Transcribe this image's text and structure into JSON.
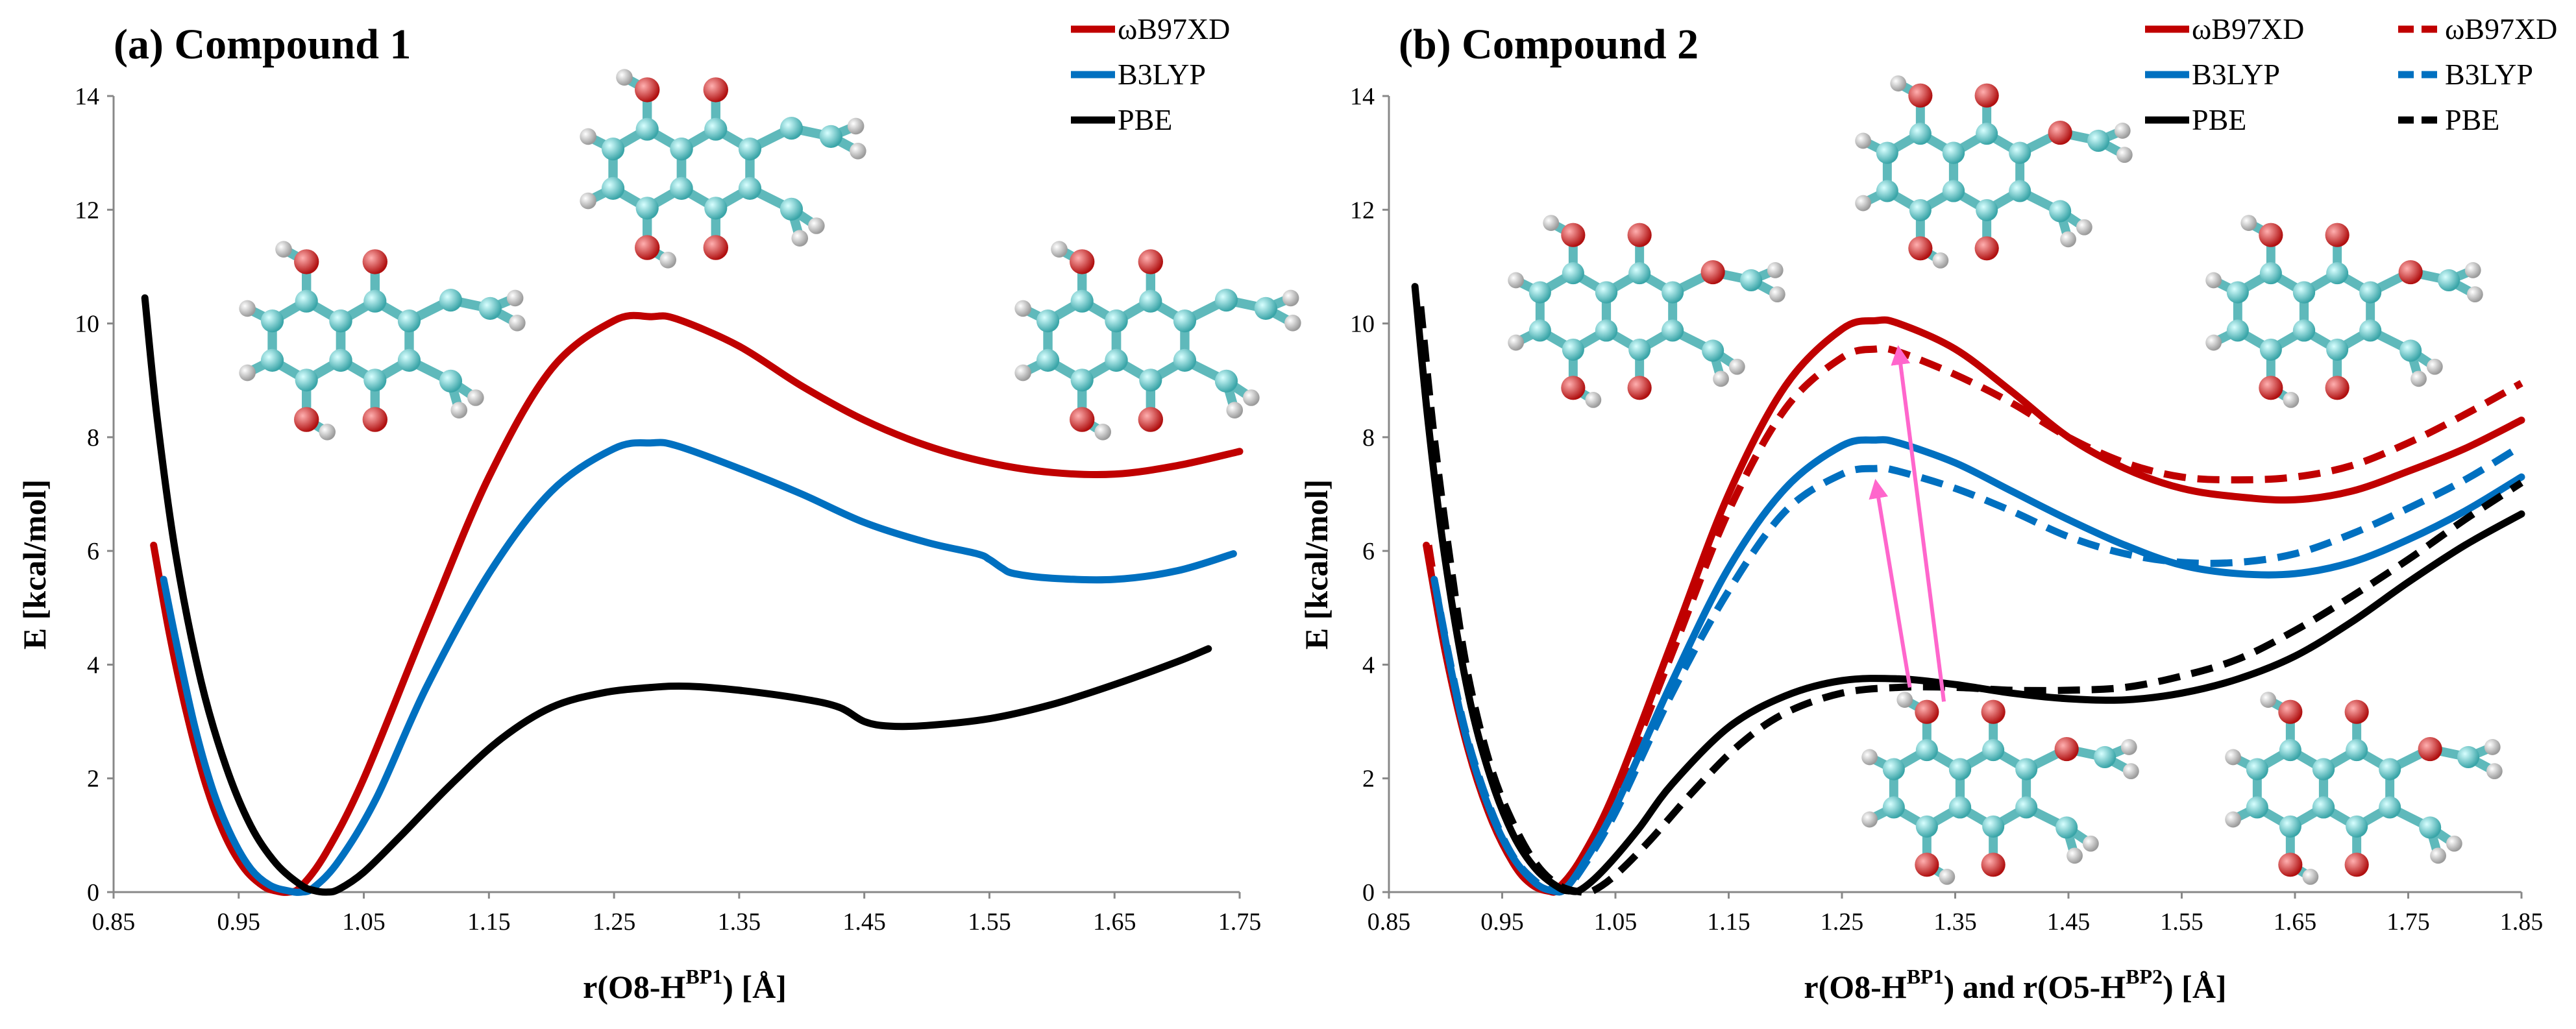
{
  "chart_data": [
    {
      "type": "line",
      "title": "(a) Compound 1",
      "xlabel_main": "r(O8-H",
      "xlabel_sup": "BP1",
      "xlabel_tail": ") [Å]",
      "ylabel": "E [kcal/mol]",
      "xlim": [
        0.85,
        1.75
      ],
      "ylim": [
        0,
        14
      ],
      "xticks": [
        "0.85",
        "0.95",
        "1.05",
        "1.15",
        "1.25",
        "1.35",
        "1.45",
        "1.55",
        "1.65",
        "1.75"
      ],
      "yticks": [
        "0",
        "2",
        "4",
        "6",
        "8",
        "10",
        "12",
        "14"
      ],
      "legend_position": "top-right",
      "series": [
        {
          "name": "ωB97XD",
          "color": "#C00000",
          "dash": "solid",
          "x": [
            0.882,
            0.895,
            0.91,
            0.925,
            0.94,
            0.955,
            0.97,
            0.98,
            0.99,
            1.0,
            1.02,
            1.05,
            1.1,
            1.15,
            1.2,
            1.25,
            1.28,
            1.3,
            1.35,
            1.4,
            1.45,
            1.5,
            1.55,
            1.6,
            1.65,
            1.7,
            1.75
          ],
          "y": [
            6.1,
            4.5,
            3.0,
            1.8,
            0.95,
            0.4,
            0.1,
            0.02,
            0.0,
            0.1,
            0.7,
            2.0,
            4.7,
            7.3,
            9.2,
            10.05,
            10.12,
            10.08,
            9.6,
            8.9,
            8.3,
            7.85,
            7.55,
            7.38,
            7.35,
            7.5,
            7.75
          ]
        },
        {
          "name": "B3LYP",
          "color": "#0070C0",
          "dash": "solid",
          "x": [
            0.89,
            0.9,
            0.915,
            0.93,
            0.945,
            0.96,
            0.975,
            0.99,
            1.0,
            1.01,
            1.03,
            1.06,
            1.1,
            1.15,
            1.2,
            1.25,
            1.28,
            1.3,
            1.35,
            1.4,
            1.45,
            1.5,
            1.54,
            1.55,
            1.56,
            1.57,
            1.6,
            1.65,
            1.7,
            1.745
          ],
          "y": [
            5.5,
            4.4,
            2.9,
            1.75,
            0.95,
            0.4,
            0.12,
            0.02,
            0.0,
            0.08,
            0.55,
            1.65,
            3.6,
            5.6,
            7.05,
            7.8,
            7.9,
            7.85,
            7.45,
            7.0,
            6.5,
            6.15,
            5.95,
            5.85,
            5.7,
            5.6,
            5.52,
            5.5,
            5.65,
            5.95
          ]
        },
        {
          "name": "PBE",
          "color": "#000000",
          "dash": "solid",
          "x": [
            0.875,
            0.885,
            0.9,
            0.92,
            0.94,
            0.96,
            0.98,
            1.0,
            1.01,
            1.02,
            1.03,
            1.05,
            1.08,
            1.12,
            1.16,
            1.2,
            1.24,
            1.28,
            1.31,
            1.35,
            1.4,
            1.43,
            1.45,
            1.47,
            1.5,
            1.55,
            1.6,
            1.65,
            1.7,
            1.725
          ],
          "y": [
            10.45,
            8.3,
            5.9,
            3.7,
            2.2,
            1.15,
            0.5,
            0.12,
            0.03,
            0.0,
            0.05,
            0.35,
            1.0,
            1.9,
            2.7,
            3.25,
            3.5,
            3.6,
            3.62,
            3.55,
            3.4,
            3.25,
            3.0,
            2.92,
            2.93,
            3.05,
            3.3,
            3.65,
            4.05,
            4.28
          ]
        }
      ]
    },
    {
      "type": "line",
      "title": "(b) Compound 2",
      "xlabel_main": "r(O8-H",
      "xlabel_sup": "BP1",
      "xlabel_mid": ") and r(O5-H",
      "xlabel_sup2": "BP2",
      "xlabel_tail": ") [Å]",
      "ylabel": "E [kcal/mol]",
      "xlim": [
        0.85,
        1.85
      ],
      "ylim": [
        0,
        14
      ],
      "xticks": [
        "0.85",
        "0.95",
        "1.05",
        "1.15",
        "1.25",
        "1.35",
        "1.45",
        "1.55",
        "1.65",
        "1.75",
        "1.85"
      ],
      "yticks": [
        "0",
        "2",
        "4",
        "6",
        "8",
        "10",
        "12",
        "14"
      ],
      "legend_position": "top-right",
      "series": [
        {
          "name": "ωB97XD",
          "color": "#C00000",
          "dash": "solid",
          "x": [
            0.883,
            0.9,
            0.92,
            0.94,
            0.96,
            0.975,
            0.99,
            1.0,
            1.02,
            1.05,
            1.1,
            1.15,
            1.2,
            1.25,
            1.28,
            1.3,
            1.35,
            1.4,
            1.45,
            1.5,
            1.55,
            1.6,
            1.65,
            1.7,
            1.75,
            1.8,
            1.85
          ],
          "y": [
            6.1,
            4.2,
            2.5,
            1.3,
            0.5,
            0.15,
            0.02,
            0.08,
            0.6,
            1.8,
            4.4,
            7.0,
            8.9,
            9.9,
            10.05,
            10.0,
            9.55,
            8.8,
            8.0,
            7.45,
            7.1,
            6.95,
            6.9,
            7.05,
            7.4,
            7.8,
            8.3
          ]
        },
        {
          "name": "ωB97XD",
          "color": "#C00000",
          "dash": "dashed",
          "x": [
            0.885,
            0.9,
            0.92,
            0.94,
            0.96,
            0.975,
            0.99,
            1.0,
            1.02,
            1.05,
            1.1,
            1.15,
            1.2,
            1.25,
            1.28,
            1.3,
            1.35,
            1.4,
            1.45,
            1.5,
            1.55,
            1.6,
            1.65,
            1.7,
            1.75,
            1.8,
            1.85
          ],
          "y": [
            6.1,
            4.3,
            2.55,
            1.35,
            0.55,
            0.18,
            0.03,
            0.05,
            0.55,
            1.7,
            4.2,
            6.7,
            8.5,
            9.4,
            9.55,
            9.5,
            9.1,
            8.6,
            8.0,
            7.55,
            7.3,
            7.25,
            7.3,
            7.5,
            7.9,
            8.4,
            8.95
          ]
        },
        {
          "name": "B3LYP",
          "color": "#0070C0",
          "dash": "solid",
          "x": [
            0.89,
            0.905,
            0.92,
            0.94,
            0.96,
            0.98,
            0.995,
            1.005,
            1.02,
            1.05,
            1.1,
            1.15,
            1.2,
            1.25,
            1.28,
            1.3,
            1.35,
            1.4,
            1.45,
            1.5,
            1.55,
            1.6,
            1.65,
            1.7,
            1.75,
            1.8,
            1.85
          ],
          "y": [
            5.5,
            3.9,
            2.6,
            1.4,
            0.6,
            0.15,
            0.02,
            0.05,
            0.45,
            1.5,
            3.7,
            5.7,
            7.1,
            7.85,
            7.95,
            7.9,
            7.55,
            7.05,
            6.55,
            6.1,
            5.75,
            5.6,
            5.6,
            5.8,
            6.2,
            6.7,
            7.3
          ]
        },
        {
          "name": "B3LYP",
          "color": "#0070C0",
          "dash": "dashed",
          "x": [
            0.89,
            0.905,
            0.92,
            0.94,
            0.96,
            0.98,
            0.995,
            1.005,
            1.02,
            1.05,
            1.1,
            1.15,
            1.2,
            1.25,
            1.28,
            1.3,
            1.35,
            1.4,
            1.45,
            1.5,
            1.55,
            1.6,
            1.65,
            1.7,
            1.75,
            1.8,
            1.85
          ],
          "y": [
            5.5,
            3.95,
            2.65,
            1.45,
            0.62,
            0.18,
            0.03,
            0.04,
            0.4,
            1.4,
            3.5,
            5.3,
            6.7,
            7.35,
            7.45,
            7.4,
            7.1,
            6.7,
            6.25,
            5.95,
            5.8,
            5.8,
            5.95,
            6.3,
            6.75,
            7.25,
            7.85
          ]
        },
        {
          "name": "PBE",
          "color": "#000000",
          "dash": "solid",
          "x": [
            0.873,
            0.885,
            0.9,
            0.92,
            0.94,
            0.96,
            0.98,
            1.0,
            1.01,
            1.02,
            1.04,
            1.07,
            1.1,
            1.15,
            1.2,
            1.25,
            1.3,
            1.35,
            1.4,
            1.45,
            1.5,
            1.55,
            1.6,
            1.65,
            1.7,
            1.75,
            1.8,
            1.85
          ],
          "y": [
            10.65,
            8.2,
            5.8,
            3.5,
            2.0,
            1.0,
            0.4,
            0.08,
            0.02,
            0.05,
            0.4,
            1.1,
            1.9,
            2.9,
            3.45,
            3.72,
            3.75,
            3.65,
            3.5,
            3.4,
            3.38,
            3.5,
            3.75,
            4.15,
            4.75,
            5.45,
            6.1,
            6.65
          ]
        },
        {
          "name": "PBE",
          "color": "#000000",
          "dash": "dashed",
          "x": [
            0.878,
            0.89,
            0.905,
            0.92,
            0.94,
            0.96,
            0.98,
            1.0,
            1.02,
            1.03,
            1.05,
            1.08,
            1.12,
            1.16,
            1.2,
            1.25,
            1.3,
            1.35,
            1.4,
            1.45,
            1.5,
            1.55,
            1.6,
            1.65,
            1.7,
            1.75,
            1.8,
            1.85
          ],
          "y": [
            10.3,
            8.0,
            5.7,
            3.8,
            2.2,
            1.2,
            0.5,
            0.12,
            0.0,
            0.02,
            0.3,
            0.9,
            1.8,
            2.6,
            3.15,
            3.5,
            3.6,
            3.6,
            3.55,
            3.55,
            3.6,
            3.8,
            4.1,
            4.6,
            5.2,
            5.85,
            6.55,
            7.2
          ]
        }
      ],
      "arrows": [
        {
          "from": [
            1.31,
            3.6
          ],
          "to": [
            1.28,
            7.2
          ],
          "color": "#FF66CC"
        },
        {
          "from": [
            1.34,
            3.35
          ],
          "to": [
            1.3,
            9.55
          ],
          "color": "#FF66CC"
        }
      ]
    }
  ]
}
